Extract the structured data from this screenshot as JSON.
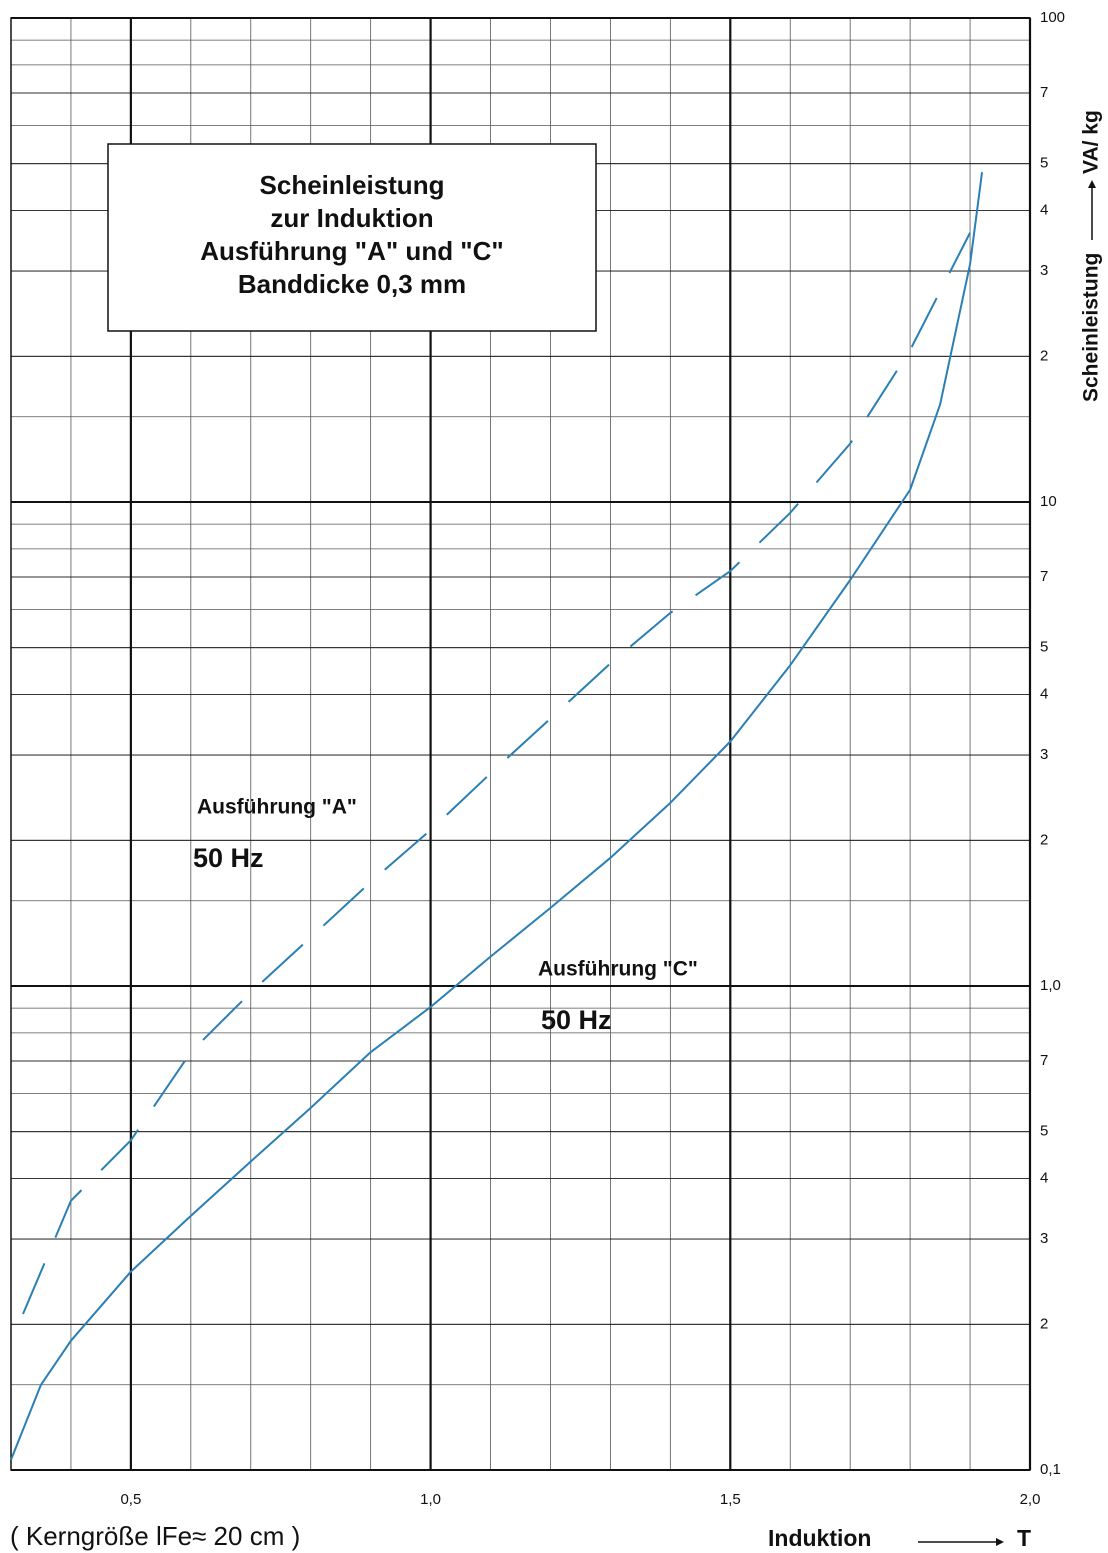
{
  "chart_data": {
    "type": "line",
    "title": [
      "Scheinleistung",
      "zur Induktion",
      "Ausführung \"A\" und \"C\"",
      "Banddicke 0,3 mm"
    ],
    "y_label": "Scheinleistung",
    "y_unit": "VA/ kg",
    "x_label": "Induktion",
    "x_unit": "T",
    "footnote": "( Kerngröße lFe≈ 20 cm )",
    "log_y": true,
    "grid": true,
    "minor_grid": true,
    "xlim": [
      0.3,
      2.0
    ],
    "xticks": [
      {
        "value": 0.5,
        "label": "0,5"
      },
      {
        "value": 1.0,
        "label": "1,0"
      },
      {
        "value": 1.5,
        "label": "1,5"
      },
      {
        "value": 2.0,
        "label": "2,0"
      }
    ],
    "ylim": [
      0.1,
      100
    ],
    "yticks": [
      {
        "value": 0.1,
        "label": "0,1"
      },
      {
        "value": 0.2,
        "label": "2"
      },
      {
        "value": 0.3,
        "label": "3"
      },
      {
        "value": 0.4,
        "label": "4"
      },
      {
        "value": 0.5,
        "label": "5"
      },
      {
        "value": 0.7,
        "label": "7"
      },
      {
        "value": 1.0,
        "label": "1,0"
      },
      {
        "value": 2,
        "label": "2"
      },
      {
        "value": 3,
        "label": "3"
      },
      {
        "value": 4,
        "label": "4"
      },
      {
        "value": 5,
        "label": "5"
      },
      {
        "value": 7,
        "label": "7"
      },
      10,
      {
        "value": 20,
        "label": "2"
      },
      {
        "value": 30,
        "label": "3"
      },
      {
        "value": 40,
        "label": "4"
      },
      {
        "value": 50,
        "label": "5"
      },
      {
        "value": 70,
        "label": "7"
      },
      100
    ],
    "series": [
      {
        "name": "Ausführung \"A\"",
        "dash": true,
        "color": "#2a7fb4",
        "x": [
          0.32,
          0.4,
          0.5,
          0.6,
          0.7,
          0.8,
          0.9,
          1.0,
          1.1,
          1.2,
          1.3,
          1.4,
          1.5,
          1.6,
          1.7,
          1.8,
          1.9
        ],
        "values": [
          0.21,
          0.36,
          0.48,
          0.73,
          0.97,
          1.26,
          1.64,
          2.1,
          2.75,
          3.57,
          4.64,
          5.9,
          7.2,
          9.5,
          13.2,
          20.6,
          36
        ]
      },
      {
        "name": "Ausführung \"C\"",
        "dash": false,
        "color": "#2a7fb4",
        "x": [
          0.3,
          0.35,
          0.4,
          0.5,
          0.6,
          0.7,
          0.8,
          0.9,
          1.0,
          1.1,
          1.2,
          1.3,
          1.4,
          1.5,
          1.6,
          1.7,
          1.8,
          1.85,
          1.9,
          1.92
        ],
        "values": [
          0.105,
          0.15,
          0.185,
          0.257,
          0.335,
          0.434,
          0.56,
          0.73,
          0.905,
          1.15,
          1.45,
          1.84,
          2.39,
          3.2,
          4.6,
          6.9,
          10.6,
          15.9,
          31,
          48
        ]
      }
    ],
    "annotations": [
      "50 Hz",
      "50 Hz"
    ]
  }
}
